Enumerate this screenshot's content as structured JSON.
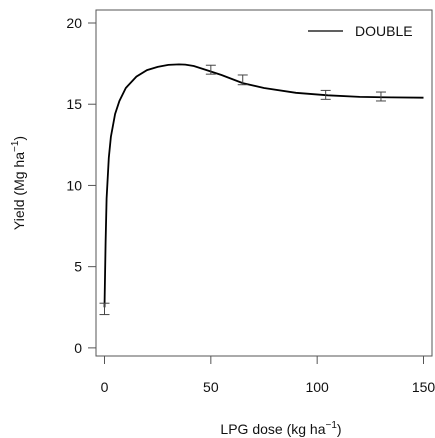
{
  "chart_data": {
    "type": "line",
    "title": "",
    "xlabel": "LPG dose (kg ha",
    "xlabel_sup": "−1",
    "xlabel_suffix": ")",
    "ylabel": "Yield (Mg ha",
    "ylabel_sup": "−1",
    "ylabel_suffix": ")",
    "xlim": [
      -4,
      154
    ],
    "ylim": [
      -0.5,
      20.8
    ],
    "xticks": [
      0,
      50,
      100,
      150
    ],
    "yticks": [
      0,
      5,
      10,
      15,
      20
    ],
    "grid": false,
    "legend": {
      "position": "top-right",
      "entries": [
        "DOUBLE"
      ]
    },
    "series": [
      {
        "name": "DOUBLE",
        "kind": "fitted-curve",
        "x": [
          0,
          0.5,
          1,
          2,
          3,
          5,
          7,
          10,
          15,
          20,
          25,
          30,
          35,
          38,
          42,
          48,
          55,
          65,
          75,
          90,
          105,
          120,
          135,
          150
        ],
        "y": [
          2.5,
          6.5,
          9.2,
          11.7,
          13.0,
          14.4,
          15.2,
          16.0,
          16.7,
          17.1,
          17.3,
          17.42,
          17.45,
          17.44,
          17.35,
          17.1,
          16.8,
          16.3,
          16.0,
          15.7,
          15.55,
          15.45,
          15.42,
          15.4
        ]
      }
    ],
    "observations": {
      "x": [
        0,
        50,
        65,
        104,
        130
      ],
      "y": [
        2.5,
        17.15,
        16.5,
        15.6,
        15.5
      ],
      "err_low": [
        2.05,
        16.85,
        16.2,
        15.3,
        15.2
      ],
      "err_high": [
        2.75,
        17.4,
        16.8,
        15.85,
        15.75
      ]
    },
    "colors": {
      "line": "#000000",
      "axis": "#555555",
      "errorbar": "#444444"
    }
  }
}
